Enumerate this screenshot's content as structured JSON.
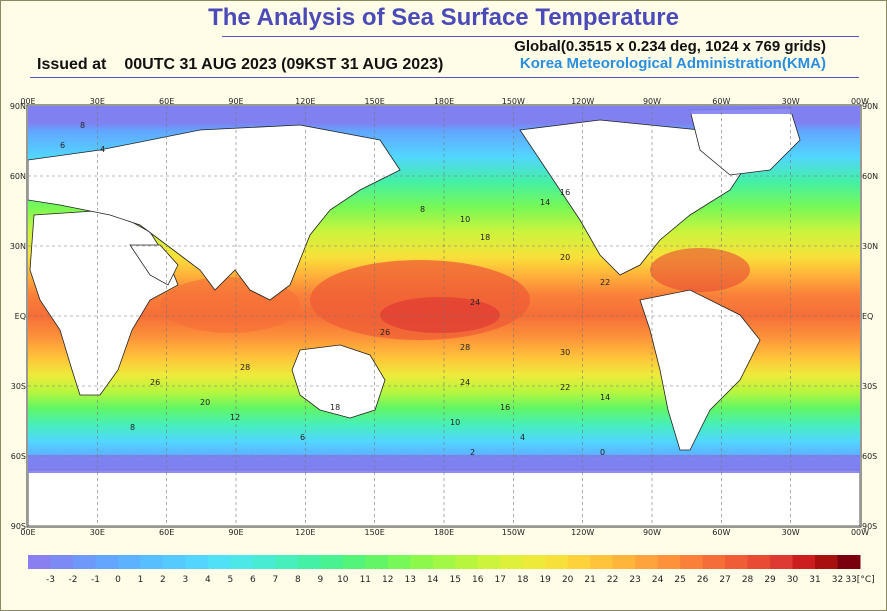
{
  "header": {
    "title": "The Analysis of Sea Surface Temperature",
    "issued_label": "Issued at",
    "issued_value": "00UTC 31 AUG 2023 (09KST 31 AUG 2023)",
    "grid_info": "Global(0.3515 x 0.234 deg, 1024 x 769 grids)",
    "agency": "Korea Meteorological Administration(KMA)"
  },
  "map": {
    "lon_labels": [
      "00E",
      "30E",
      "60E",
      "90E",
      "120E",
      "150E",
      "180E",
      "150W",
      "120W",
      "90W",
      "60W",
      "30W",
      "00W"
    ],
    "lat_labels": [
      "90N",
      "60N",
      "30N",
      "EQ",
      "30S",
      "60S",
      "90S"
    ],
    "contour_labels": [
      "8",
      "6",
      "4",
      "8",
      "10",
      "14",
      "16",
      "18",
      "20",
      "22",
      "24",
      "26",
      "28",
      "30",
      "28",
      "26",
      "24",
      "22",
      "20",
      "18",
      "16",
      "14",
      "12",
      "10",
      "8",
      "6",
      "4",
      "2",
      "0"
    ],
    "colors": {
      "land": "#ffffff",
      "ice": "#8080f0",
      "coast": "#222222",
      "grid": "#777777"
    }
  },
  "colorbar": {
    "labels": [
      "-3",
      "-2",
      "-1",
      "0",
      "1",
      "2",
      "3",
      "4",
      "5",
      "6",
      "7",
      "8",
      "9",
      "10",
      "11",
      "12",
      "13",
      "14",
      "15",
      "16",
      "17",
      "18",
      "19",
      "20",
      "21",
      "22",
      "23",
      "24",
      "25",
      "26",
      "27",
      "28",
      "29",
      "30",
      "31",
      "32",
      "33[°C]"
    ],
    "colors": [
      "#8a7ff0",
      "#7c8af5",
      "#6e99fa",
      "#62a6ff",
      "#5cb2ff",
      "#58bfff",
      "#55caff",
      "#52d5ff",
      "#50e0f8",
      "#4ce8e8",
      "#48ecd2",
      "#46efbc",
      "#44f0a6",
      "#48f290",
      "#52f47a",
      "#62f666",
      "#76f856",
      "#8cf84a",
      "#a2f844",
      "#b8f63e",
      "#ccf43c",
      "#def03a",
      "#eeea3a",
      "#f8e03a",
      "#fdd23a",
      "#ffc43a",
      "#ffb43a",
      "#ffa33a",
      "#fd923a",
      "#fa803a",
      "#f56e38",
      "#ef5c36",
      "#e84a34",
      "#de3a32",
      "#cc1e1e",
      "#a81010",
      "#7a0010"
    ],
    "unit": "[°C]"
  }
}
